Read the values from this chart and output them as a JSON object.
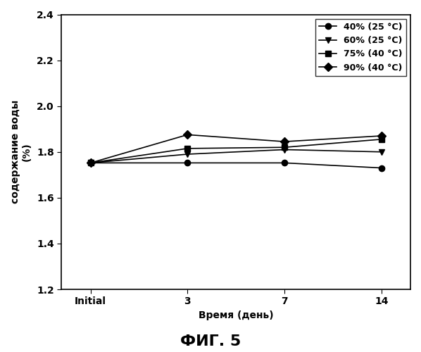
{
  "x_positions": [
    0,
    1,
    2,
    3
  ],
  "x_tick_labels": [
    "Initial",
    "3",
    "7",
    "14"
  ],
  "series": [
    {
      "label": "40% (25 °C)",
      "values": [
        1.752,
        1.752,
        1.752,
        1.73
      ],
      "marker": "o",
      "color": "#000000"
    },
    {
      "label": "60% (25 °C)",
      "values": [
        1.752,
        1.79,
        1.81,
        1.8
      ],
      "marker": "v",
      "color": "#000000"
    },
    {
      "label": "75% (40 °C)",
      "values": [
        1.752,
        1.815,
        1.82,
        1.855
      ],
      "marker": "s",
      "color": "#000000"
    },
    {
      "label": "90% (40 °C)",
      "values": [
        1.752,
        1.875,
        1.845,
        1.87
      ],
      "marker": "D",
      "color": "#000000"
    }
  ],
  "xlabel": "Время (день)",
  "ylabel": "содержание воды\n(%)",
  "ylim": [
    1.2,
    2.4
  ],
  "yticks": [
    1.2,
    1.4,
    1.6,
    1.8,
    2.0,
    2.2,
    2.4
  ],
  "fig_title": "ФИГ. 5",
  "background_color": "#ffffff",
  "legend_fontsize": 9,
  "axis_fontsize": 10,
  "tick_fontsize": 10,
  "title_fontsize": 16
}
